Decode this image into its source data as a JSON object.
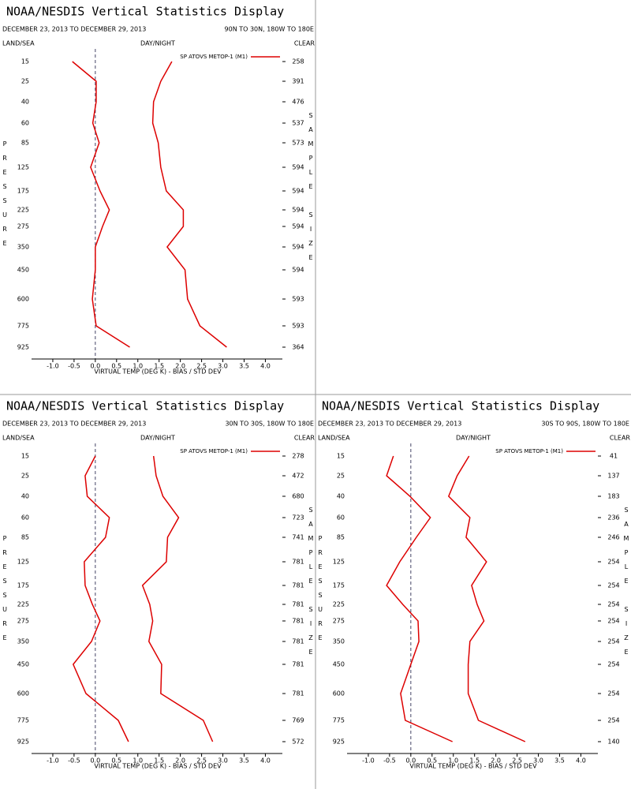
{
  "chart_data": [
    {
      "type": "line",
      "title": "NOAA/NESDIS Vertical Statistics Display",
      "subtitle": "DECEMBER 23, 2013 TO DECEMBER 29, 2013",
      "region": "90N TO 30N, 180W TO 180E",
      "land_sea": "LAND/SEA",
      "day_night": "DAY/NIGHT",
      "clear": "CLEAR",
      "ylabel": "PRESSURE",
      "y2label": "SAMPLE SIZE",
      "xlabel": "VIRTUAL TEMP (DEG K) - BIAS / STD DEV",
      "categories": [
        "15",
        "25",
        "40",
        "60",
        "85",
        "125",
        "175",
        "225",
        "275",
        "350",
        "450",
        "600",
        "775",
        "925"
      ],
      "series": [
        {
          "name": "SP ATOVS METOP-1 (M1)",
          "color": "#dd0000",
          "values": [
            -0.54,
            0.02,
            0.02,
            -0.06,
            0.09,
            -0.11,
            0.11,
            0.33,
            0.17,
            0,
            0,
            -0.07,
            0.02,
            0.81
          ]
        },
        {
          "color": "#dd0000",
          "values": [
            1.8,
            1.54,
            1.37,
            1.35,
            1.48,
            1.54,
            1.67,
            2.07,
            2.07,
            1.69,
            2.11,
            2.17,
            2.46,
            3.09
          ]
        }
      ],
      "sample_size": [
        258,
        391,
        476,
        537,
        573,
        594,
        594,
        594,
        594,
        594,
        594,
        593,
        593,
        364
      ],
      "xlim": [
        -1.5,
        4.4
      ],
      "xticks": [
        {
          "value": -1,
          "label": "-1.0"
        },
        {
          "value": -0.5,
          "label": "-0.5"
        },
        {
          "value": 0,
          "label": "0.0"
        },
        {
          "value": 0.5,
          "label": "0.5"
        },
        {
          "value": 1,
          "label": "1.0"
        },
        {
          "value": 1.5,
          "label": "1.5"
        },
        {
          "value": 2,
          "label": "2.0"
        },
        {
          "value": 2.5,
          "label": "2.5"
        },
        {
          "value": 3,
          "label": "3.0"
        },
        {
          "value": 3.5,
          "label": "3.5"
        },
        {
          "value": 4,
          "label": "4.0"
        }
      ]
    },
    {
      "type": "line",
      "title": "NOAA/NESDIS Vertical Statistics Display",
      "subtitle": "DECEMBER 23, 2013 TO DECEMBER 29, 2013",
      "region": "30N TO 30S, 180W TO 180E",
      "land_sea": "LAND/SEA",
      "day_night": "DAY/NIGHT",
      "clear": "CLEAR",
      "ylabel": "PRESSURE",
      "y2label": "SAMPLE SIZE",
      "xlabel": "VIRTUAL TEMP (DEG K) - BIAS / STD DEV",
      "categories": [
        "15",
        "25",
        "40",
        "60",
        "85",
        "125",
        "175",
        "225",
        "275",
        "350",
        "450",
        "600",
        "775",
        "925"
      ],
      "series": [
        {
          "name": "SP ATOVS METOP-1 (M1)",
          "color": "#dd0000",
          "values": [
            0,
            -0.24,
            -0.19,
            0.33,
            0.24,
            -0.26,
            -0.24,
            -0.07,
            0.11,
            -0.09,
            -0.52,
            -0.22,
            0.54,
            0.78
          ]
        },
        {
          "color": "#dd0000",
          "values": [
            1.37,
            1.43,
            1.59,
            1.96,
            1.7,
            1.67,
            1.11,
            1.28,
            1.35,
            1.26,
            1.56,
            1.54,
            2.54,
            2.76
          ]
        }
      ],
      "sample_size": [
        278,
        472,
        680,
        723,
        741,
        781,
        781,
        781,
        781,
        781,
        781,
        781,
        769,
        572
      ],
      "xlim": [
        -1.5,
        4.4
      ],
      "xticks": [
        {
          "value": -1,
          "label": "-1.0"
        },
        {
          "value": -0.5,
          "label": "-0.5"
        },
        {
          "value": 0,
          "label": "0.0"
        },
        {
          "value": 0.5,
          "label": "0.5"
        },
        {
          "value": 1,
          "label": "1.0"
        },
        {
          "value": 1.5,
          "label": "1.5"
        },
        {
          "value": 2,
          "label": "2.0"
        },
        {
          "value": 2.5,
          "label": "2.5"
        },
        {
          "value": 3,
          "label": "3.0"
        },
        {
          "value": 3.5,
          "label": "3.5"
        },
        {
          "value": 4,
          "label": "4.0"
        }
      ]
    },
    {
      "type": "line",
      "title": "NOAA/NESDIS Vertical Statistics Display",
      "subtitle": "DECEMBER 23, 2013 TO DECEMBER 29, 2013",
      "region": "30S TO 90S, 180W TO 180E",
      "land_sea": "LAND/SEA",
      "day_night": "DAY/NIGHT",
      "clear": "CLEAR",
      "ylabel": "PRESSURE",
      "y2label": "SAMPLE SIZE",
      "xlabel": "VIRTUAL TEMP (DEG K) - BIAS / STD DEV",
      "categories": [
        "15",
        "25",
        "40",
        "60",
        "85",
        "125",
        "175",
        "225",
        "275",
        "350",
        "450",
        "600",
        "775",
        "925"
      ],
      "series": [
        {
          "name": "SP ATOVS METOP-1 (M1)",
          "color": "#dd0000",
          "values": [
            -0.41,
            -0.57,
            -0.02,
            0.46,
            0.13,
            -0.26,
            -0.57,
            -0.19,
            0.17,
            0.19,
            0,
            -0.24,
            -0.13,
            0.98
          ]
        },
        {
          "color": "#dd0000",
          "values": [
            1.37,
            1.09,
            0.89,
            1.39,
            1.3,
            1.78,
            1.43,
            1.56,
            1.72,
            1.39,
            1.35,
            1.35,
            1.59,
            2.69
          ]
        }
      ],
      "sample_size": [
        41,
        137,
        183,
        236,
        246,
        254,
        254,
        254,
        254,
        254,
        254,
        254,
        254,
        140
      ],
      "xlim": [
        -1.5,
        4.4
      ],
      "xticks": [
        {
          "value": -1,
          "label": "-1.0"
        },
        {
          "value": -0.5,
          "label": "-0.5"
        },
        {
          "value": 0,
          "label": "0.0"
        },
        {
          "value": 0.5,
          "label": "0.5"
        },
        {
          "value": 1,
          "label": "1.0"
        },
        {
          "value": 1.5,
          "label": "1.5"
        },
        {
          "value": 2,
          "label": "2.0"
        },
        {
          "value": 2.5,
          "label": "2.5"
        },
        {
          "value": 3,
          "label": "3.0"
        },
        {
          "value": 3.5,
          "label": "3.5"
        },
        {
          "value": 4,
          "label": "4.0"
        }
      ]
    }
  ]
}
